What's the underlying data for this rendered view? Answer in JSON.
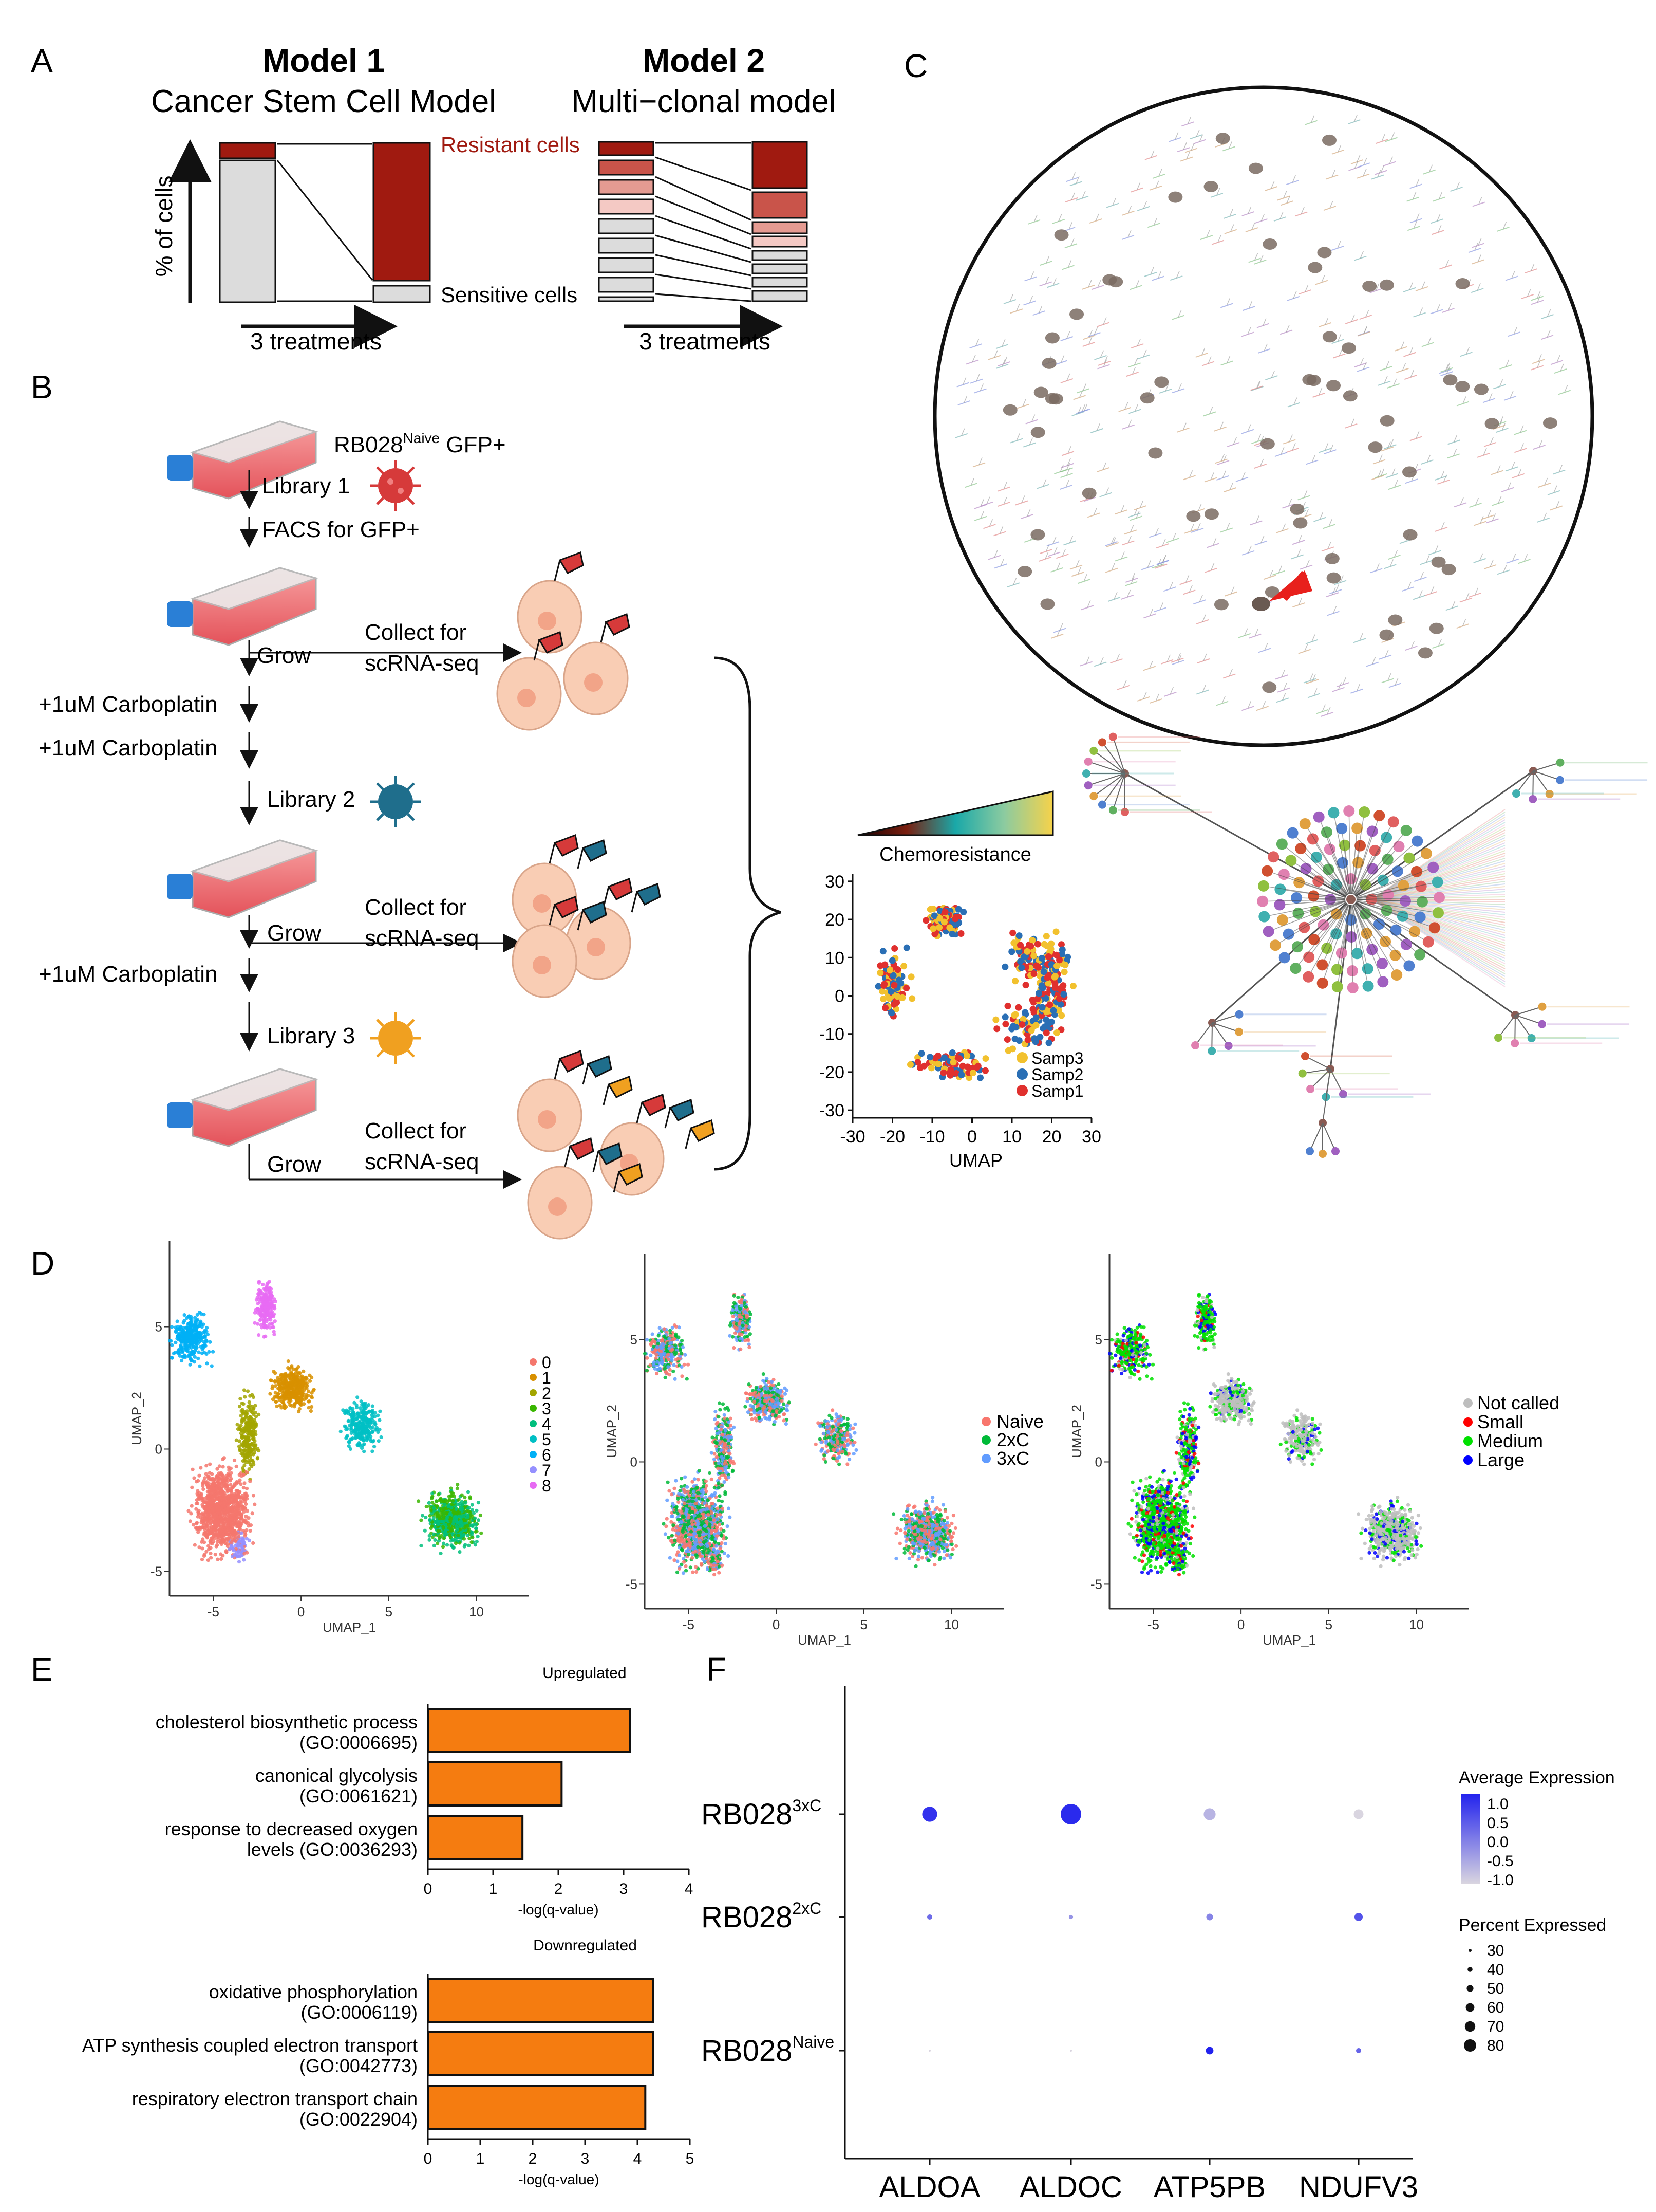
{
  "panels": {
    "A": "A",
    "B": "B",
    "C": "C",
    "D": "D",
    "E": "E",
    "F": "F"
  },
  "panelA": {
    "model1_title": "Model 1",
    "model1_subtitle": "Cancer Stem Cell Model",
    "model2_title": "Model 2",
    "model2_subtitle": "Multi−clonal model",
    "ylabel": "% of cells",
    "xlabel1": "3 treatments",
    "xlabel2": "3 treatments",
    "resistant_label": "Resistant cells",
    "sensitive_label": "Sensitive cells",
    "colors": {
      "resistant": "#a01a10",
      "sensitive": "#dcdcdc"
    }
  },
  "panelB": {
    "cellline_prefix": "RB028",
    "cellline_sup": "Naive",
    "cellline_suffix": " GFP+",
    "steps": {
      "library1": "Library 1",
      "facs": "FACS for GFP+",
      "grow1": "Grow",
      "collect1a": "Collect for",
      "collect1b": "scRNA-seq",
      "carbo1": "+1uM Carboplatin",
      "carbo2": "+1uM Carboplatin",
      "library2": "Library 2",
      "grow2": "Grow",
      "collect2a": "Collect for",
      "collect2b": "scRNA-seq",
      "carbo3": "+1uM Carboplatin",
      "library3": "Library 3",
      "grow3": "Grow",
      "collect3a": "Collect for",
      "collect3b": "scRNA-seq"
    },
    "virus_colors": [
      "#d63a3a",
      "#1f6e8c",
      "#f0a020"
    ],
    "chemo_label": "Chemoresistance",
    "umap": {
      "xlabel": "UMAP",
      "xticks": [
        "-30",
        "-20",
        "-10",
        "0",
        "10",
        "20",
        "30"
      ],
      "yticks": [
        "30",
        "20",
        "10",
        "0",
        "-10",
        "-20",
        "-30"
      ],
      "legend": [
        {
          "name": "Samp3",
          "color": "#f2c12e"
        },
        {
          "name": "Samp2",
          "color": "#2a6fb5"
        },
        {
          "name": "Samp1",
          "color": "#e0302e"
        }
      ]
    }
  },
  "panelD": {
    "xlabel": "UMAP_1",
    "ylabel": "UMAP_2",
    "xticks": [
      "-5",
      "0",
      "5",
      "10"
    ],
    "yticks": [
      "5",
      "0",
      "-5"
    ],
    "clusters_legend": [
      "0",
      "1",
      "2",
      "3",
      "4",
      "5",
      "6",
      "7",
      "8"
    ],
    "cluster_colors": [
      "#f4776d",
      "#d89000",
      "#a2a500",
      "#39b600",
      "#00bf7d",
      "#00bfc4",
      "#00b0f6",
      "#9590ff",
      "#e76bf3"
    ],
    "condition_legend": [
      {
        "name": "Naive",
        "color": "#f8766d"
      },
      {
        "name": "2xC",
        "color": "#00ba38"
      },
      {
        "name": "3xC",
        "color": "#619cff"
      }
    ],
    "size_legend": [
      {
        "name": "Not called",
        "color": "#bebebe"
      },
      {
        "name": "Small",
        "color": "#ff0000"
      },
      {
        "name": "Medium",
        "color": "#00e000"
      },
      {
        "name": "Large",
        "color": "#0000ff"
      }
    ]
  },
  "chart_data": [
    {
      "type": "bar",
      "orientation": "horizontal",
      "title": "Upregulated",
      "xlabel": "-log(q-value)",
      "xlim": [
        0,
        4
      ],
      "xticks": [
        "0",
        "1",
        "2",
        "3",
        "4"
      ],
      "categories": [
        [
          "cholesterol biosynthetic process",
          "(GO:0006695)"
        ],
        [
          "canonical glycolysis",
          "(GO:0061621)"
        ],
        [
          "response to decreased oxygen",
          "levels (GO:0036293)"
        ]
      ],
      "values": [
        3.1,
        2.05,
        1.45
      ],
      "color": "#f57c10"
    },
    {
      "type": "bar",
      "orientation": "horizontal",
      "title": "Downregulated",
      "xlabel": "-log(q-value)",
      "xlim": [
        0,
        5
      ],
      "xticks": [
        "0",
        "1",
        "2",
        "3",
        "4",
        "5"
      ],
      "categories": [
        [
          "oxidative phosphorylation",
          "(GO:0006119)"
        ],
        [
          "ATP synthesis coupled electron transport",
          "(GO:0042773)"
        ],
        [
          "respiratory electron transport chain",
          "(GO:0022904)"
        ]
      ],
      "values": [
        4.3,
        4.3,
        4.15
      ],
      "color": "#f57c10"
    },
    {
      "type": "scatter",
      "subtype": "dotplot",
      "genes": [
        "ALDOA",
        "ALDOC",
        "ATP5PB",
        "NDUFV3"
      ],
      "samples": [
        {
          "prefix": "RB028",
          "sup": "3xC"
        },
        {
          "prefix": "RB028",
          "sup": "2xC"
        },
        {
          "prefix": "RB028",
          "sup": "Naive"
        }
      ],
      "avg_expression": [
        [
          1.0,
          1.1,
          -0.6,
          -1.0
        ],
        [
          0.3,
          -0.2,
          0.0,
          0.6
        ],
        [
          -1.0,
          -1.0,
          1.2,
          0.4
        ]
      ],
      "pct_expressed": [
        [
          62,
          80,
          52,
          45
        ],
        [
          30,
          27,
          35,
          40
        ],
        [
          20,
          20,
          38,
          30
        ]
      ],
      "legend_title_color": "Average Expression",
      "color_ticks": [
        "1.0",
        "0.5",
        "0.0",
        "-0.5",
        "-1.0"
      ],
      "legend_title_size": "Percent Expressed",
      "size_ticks": [
        "30",
        "40",
        "50",
        "60",
        "70",
        "80"
      ],
      "colors": {
        "low": "#d9d5e0",
        "high": "#2222ee"
      }
    }
  ]
}
